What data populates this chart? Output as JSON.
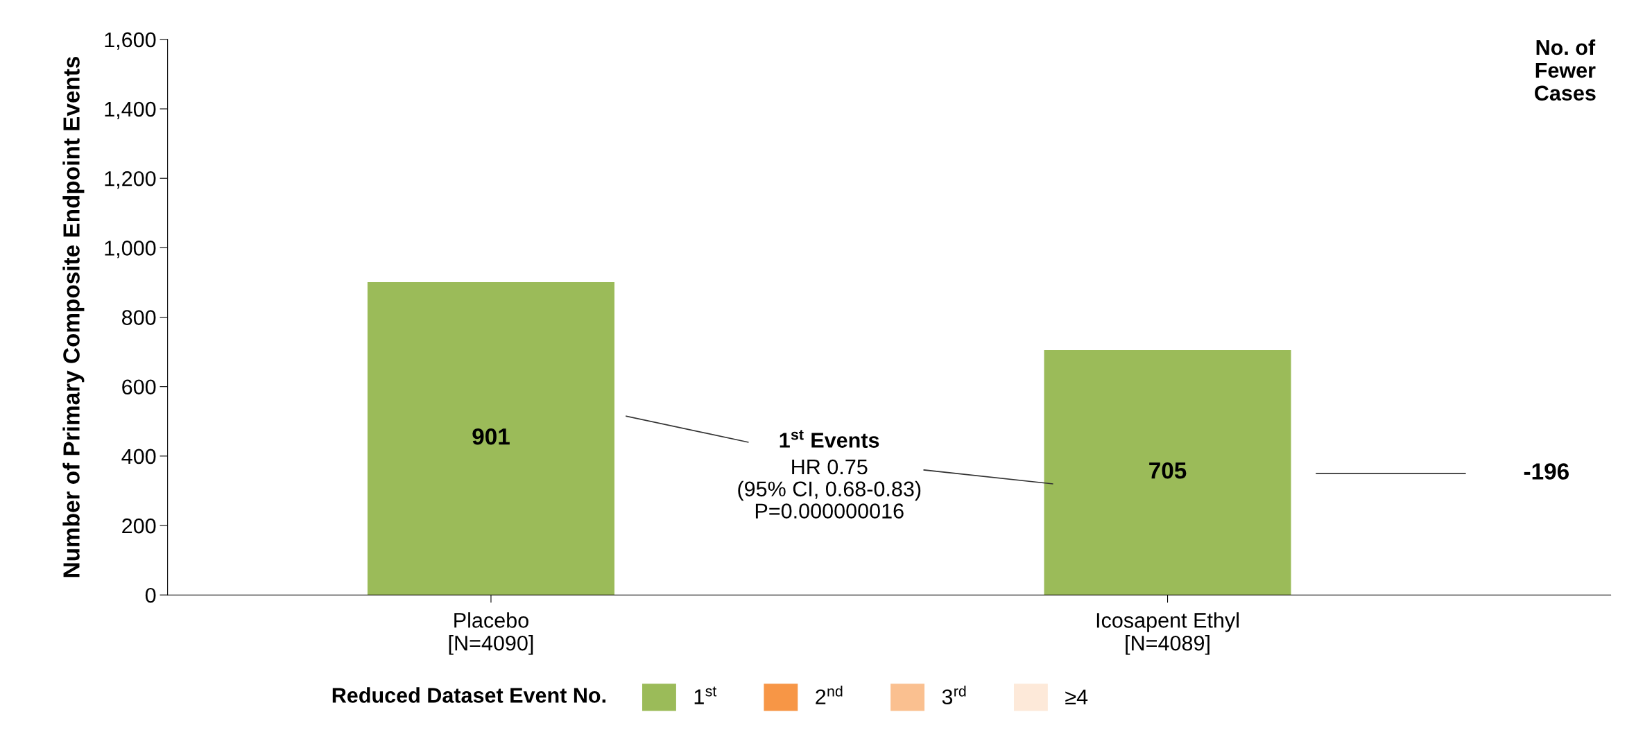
{
  "chart_data": {
    "type": "bar",
    "ylabel": "Number of Primary Composite Endpoint Events",
    "categories": [
      "Placebo\n[N=4090]",
      "Icosapent Ethyl\n[N=4089]"
    ],
    "series": [
      {
        "name": "1$^{st}$",
        "color": "#9bbb59",
        "values": [
          901,
          705
        ]
      },
      {
        "name": "2$^{nd}$",
        "color": "#f79646",
        "values": [
          null,
          null
        ]
      },
      {
        "name": "3$^{rd}$",
        "color": "#fac090",
        "values": [
          null,
          null
        ]
      },
      {
        "name": "≥4",
        "color": "#fde9d9",
        "values": [
          null,
          null
        ]
      }
    ],
    "ylim": [
      0,
      1600
    ],
    "yticks": [
      0,
      200,
      400,
      600,
      800,
      {
        "value": 1000,
        "label": "1,000"
      },
      {
        "value": 1200,
        "label": "1,200"
      },
      {
        "value": 1400,
        "label": "1,400"
      },
      {
        "value": 1600,
        "label": "1,600"
      }
    ],
    "data_labels": true,
    "grid": false,
    "legend": "bottom",
    "legend_title": "Reduced Dataset Event No.",
    "annotations": [
      "No. of\nFewer\nCases",
      "-196",
      "1$^{st}$ Events",
      "HR 0.75\n(95% CI, 0.68-0.83)\nP=0.000000016"
    ]
  }
}
